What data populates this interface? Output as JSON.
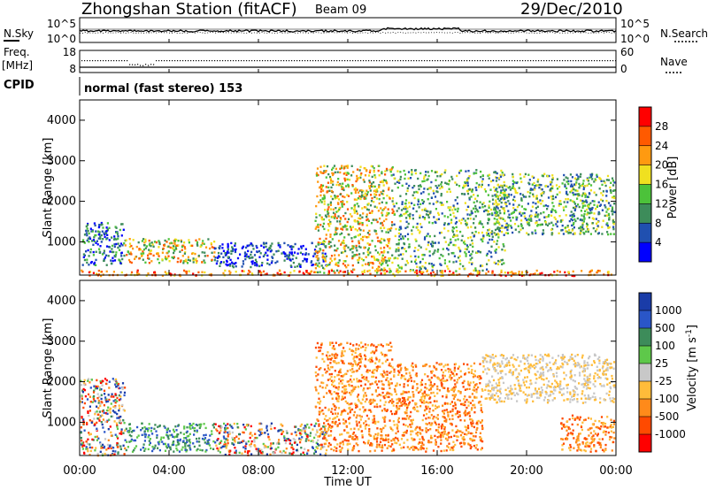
{
  "header": {
    "station_title": "Zhongshan Station (fitACF)",
    "beam": "Beam 09",
    "date": "29/Dec/2010",
    "nsky_label": "N.Sky",
    "nsky_ticks": [
      "10^5",
      "10^0"
    ],
    "nsearch_label": "N.Search",
    "nsearch_ticks": [
      "10^5",
      "10^0"
    ],
    "freq_label": "Freq.",
    "freq_unit": "[MHz]",
    "freq_ticks": [
      "18",
      "8"
    ],
    "nave_label": "Nave",
    "nave_ticks": [
      "60",
      "0"
    ],
    "cpid_label": "CPID",
    "cpid_text": "normal (fast stereo) 153"
  },
  "chart_data": [
    {
      "type": "heatmap",
      "quantity": "Power",
      "ylabel": "Slant Range [km]",
      "ylim": [
        180,
        4500
      ],
      "yticks": [
        1000,
        2000,
        3000,
        4000
      ],
      "xlim_hours": [
        0,
        24
      ],
      "colorbar": {
        "label": "Power [dB]",
        "ticks": [
          "4",
          "8",
          "12",
          "16",
          "20",
          "24",
          "28"
        ],
        "colors": [
          "#0000ff",
          "#2050b0",
          "#3d8c5a",
          "#4cc23a",
          "#f0e020",
          "#ff9a10",
          "#ff5a00",
          "#ff0000"
        ]
      },
      "echo_regions_hours_km": [
        {
          "t": [
            0.1,
            2.0
          ],
          "r": [
            450,
            1500
          ],
          "level": "low-mid"
        },
        {
          "t": [
            2.0,
            6.0
          ],
          "r": [
            500,
            1100
          ],
          "level": "mid-high"
        },
        {
          "t": [
            6.0,
            11.0
          ],
          "r": [
            400,
            1000
          ],
          "level": "low"
        },
        {
          "t": [
            10.5,
            14.0
          ],
          "r": [
            250,
            2900
          ],
          "level": "mid-high"
        },
        {
          "t": [
            14.0,
            19.0
          ],
          "r": [
            300,
            2800
          ],
          "level": "mid"
        },
        {
          "t": [
            18.5,
            23.9
          ],
          "r": [
            1200,
            2700
          ],
          "level": "mid"
        },
        {
          "t": [
            0.0,
            23.9
          ],
          "r": [
            180,
            320
          ],
          "level": "high"
        }
      ]
    },
    {
      "type": "heatmap",
      "quantity": "Velocity",
      "ylabel": "Slant Range [km]",
      "ylim": [
        180,
        4500
      ],
      "yticks": [
        1000,
        2000,
        3000,
        4000
      ],
      "xlim_hours": [
        0,
        24
      ],
      "xlabel": "Time UT",
      "xticks": [
        "00:00",
        "04:00",
        "08:00",
        "12:00",
        "16:00",
        "20:00",
        "00:00"
      ],
      "colorbar": {
        "label": "Velocity [m s^-1]",
        "ticks": [
          "1000",
          "500",
          "100",
          "25",
          "-25",
          "-100",
          "-500",
          "-1000"
        ],
        "colors": [
          "#1a3ca8",
          "#2a56c8",
          "#3d8c5a",
          "#5ec84a",
          "#c8c8c8",
          "#ffbc3a",
          "#ff8a1a",
          "#ff4a00",
          "#ff0000"
        ]
      },
      "echo_regions_hours_km": [
        {
          "t": [
            0.0,
            2.0
          ],
          "r": [
            200,
            2100
          ],
          "level": "mixed"
        },
        {
          "t": [
            2.0,
            6.0
          ],
          "r": [
            300,
            1000
          ],
          "level": "positive"
        },
        {
          "t": [
            6.0,
            11.0
          ],
          "r": [
            200,
            1000
          ],
          "level": "mixed"
        },
        {
          "t": [
            10.5,
            14.0
          ],
          "r": [
            300,
            3000
          ],
          "level": "negative"
        },
        {
          "t": [
            14.0,
            18.0
          ],
          "r": [
            300,
            2500
          ],
          "level": "negative"
        },
        {
          "t": [
            18.0,
            23.9
          ],
          "r": [
            1500,
            2700
          ],
          "level": "near-zero"
        },
        {
          "t": [
            21.5,
            23.9
          ],
          "r": [
            300,
            1200
          ],
          "level": "negative"
        }
      ]
    }
  ]
}
